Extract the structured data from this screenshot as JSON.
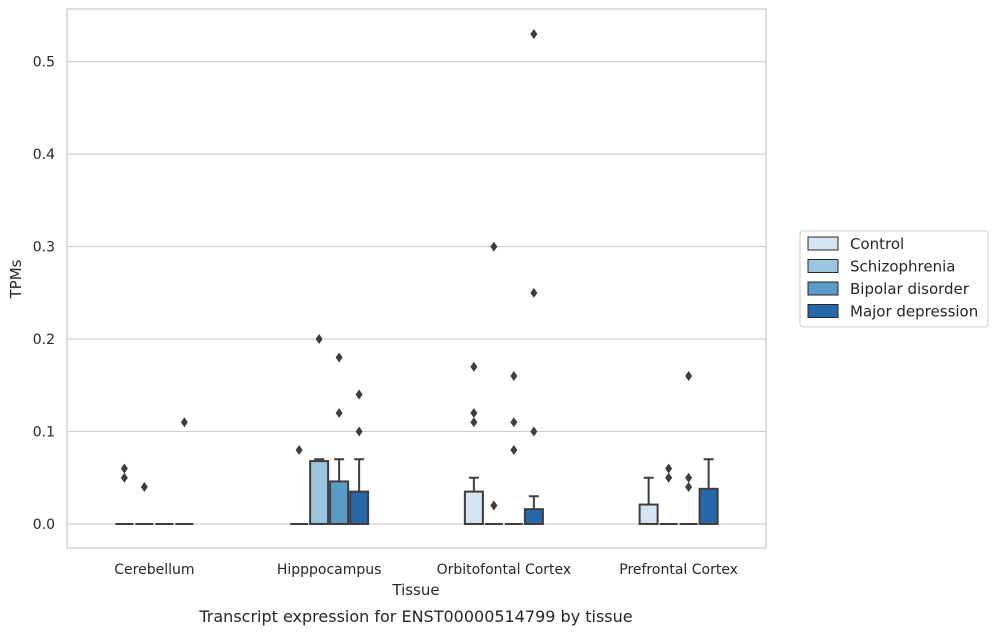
{
  "caption": "Transcript expression for ENST00000514799 by tissue",
  "chart_data": {
    "type": "box",
    "xlabel": "Tissue",
    "ylabel": "TPMs",
    "ylim": [
      -0.026,
      0.557
    ],
    "yticks": [
      0.0,
      0.1,
      0.2,
      0.3,
      0.4,
      0.5
    ],
    "ytick_labels": [
      "0.0",
      "0.1",
      "0.2",
      "0.3",
      "0.4",
      "0.5"
    ],
    "grid": "horizontal",
    "legend_position": "outside-right",
    "categories": [
      "Cerebellum",
      "Hipppocampus",
      "Orbitofontal Cortex",
      "Prefrontal Cortex"
    ],
    "series": [
      {
        "name": "Control",
        "color": "#d4e4f3",
        "boxes": [
          {
            "q1": 0,
            "median": 0,
            "q3": 0,
            "whisker_low": 0,
            "whisker_high": 0,
            "outliers": [
              0.06,
              0.05
            ]
          },
          {
            "q1": 0,
            "median": 0,
            "q3": 0,
            "whisker_low": 0,
            "whisker_high": 0,
            "outliers": [
              0.08
            ]
          },
          {
            "q1": 0,
            "median": 0,
            "q3": 0.035,
            "whisker_low": 0,
            "whisker_high": 0.05,
            "outliers": [
              0.17,
              0.12,
              0.11
            ]
          },
          {
            "q1": 0,
            "median": 0,
            "q3": 0.021,
            "whisker_low": 0,
            "whisker_high": 0.05,
            "outliers": []
          }
        ]
      },
      {
        "name": "Schizophrenia",
        "color": "#9bc5df",
        "boxes": [
          {
            "q1": 0,
            "median": 0,
            "q3": 0,
            "whisker_low": 0,
            "whisker_high": 0,
            "outliers": [
              0.04
            ]
          },
          {
            "q1": 0,
            "median": 0,
            "q3": 0.068,
            "whisker_low": 0,
            "whisker_high": 0.07,
            "outliers": [
              0.2
            ]
          },
          {
            "q1": 0,
            "median": 0,
            "q3": 0,
            "whisker_low": 0,
            "whisker_high": 0,
            "outliers": [
              0.3,
              0.02
            ]
          },
          {
            "q1": 0,
            "median": 0,
            "q3": 0,
            "whisker_low": 0,
            "whisker_high": 0,
            "outliers": [
              0.06,
              0.05
            ]
          }
        ]
      },
      {
        "name": "Bipolar disorder",
        "color": "#5a9bc8",
        "boxes": [
          {
            "q1": 0,
            "median": 0,
            "q3": 0,
            "whisker_low": 0,
            "whisker_high": 0,
            "outliers": []
          },
          {
            "q1": 0,
            "median": 0,
            "q3": 0.046,
            "whisker_low": 0,
            "whisker_high": 0.07,
            "outliers": [
              0.18,
              0.12
            ]
          },
          {
            "q1": 0,
            "median": 0,
            "q3": 0,
            "whisker_low": 0,
            "whisker_high": 0,
            "outliers": [
              0.16,
              0.11,
              0.08
            ]
          },
          {
            "q1": 0,
            "median": 0,
            "q3": 0,
            "whisker_low": 0,
            "whisker_high": 0,
            "outliers": [
              0.16,
              0.05,
              0.04
            ]
          }
        ]
      },
      {
        "name": "Major depression",
        "color": "#2668a8",
        "boxes": [
          {
            "q1": 0,
            "median": 0,
            "q3": 0,
            "whisker_low": 0,
            "whisker_high": 0,
            "outliers": [
              0.11
            ]
          },
          {
            "q1": 0,
            "median": 0,
            "q3": 0.035,
            "whisker_low": 0,
            "whisker_high": 0.07,
            "outliers": [
              0.14,
              0.1
            ]
          },
          {
            "q1": 0,
            "median": 0,
            "q3": 0.016,
            "whisker_low": 0,
            "whisker_high": 0.03,
            "outliers": [
              0.53,
              0.25,
              0.1
            ]
          },
          {
            "q1": 0,
            "median": 0,
            "q3": 0.038,
            "whisker_low": 0,
            "whisker_high": 0.07,
            "outliers": []
          }
        ]
      }
    ]
  }
}
